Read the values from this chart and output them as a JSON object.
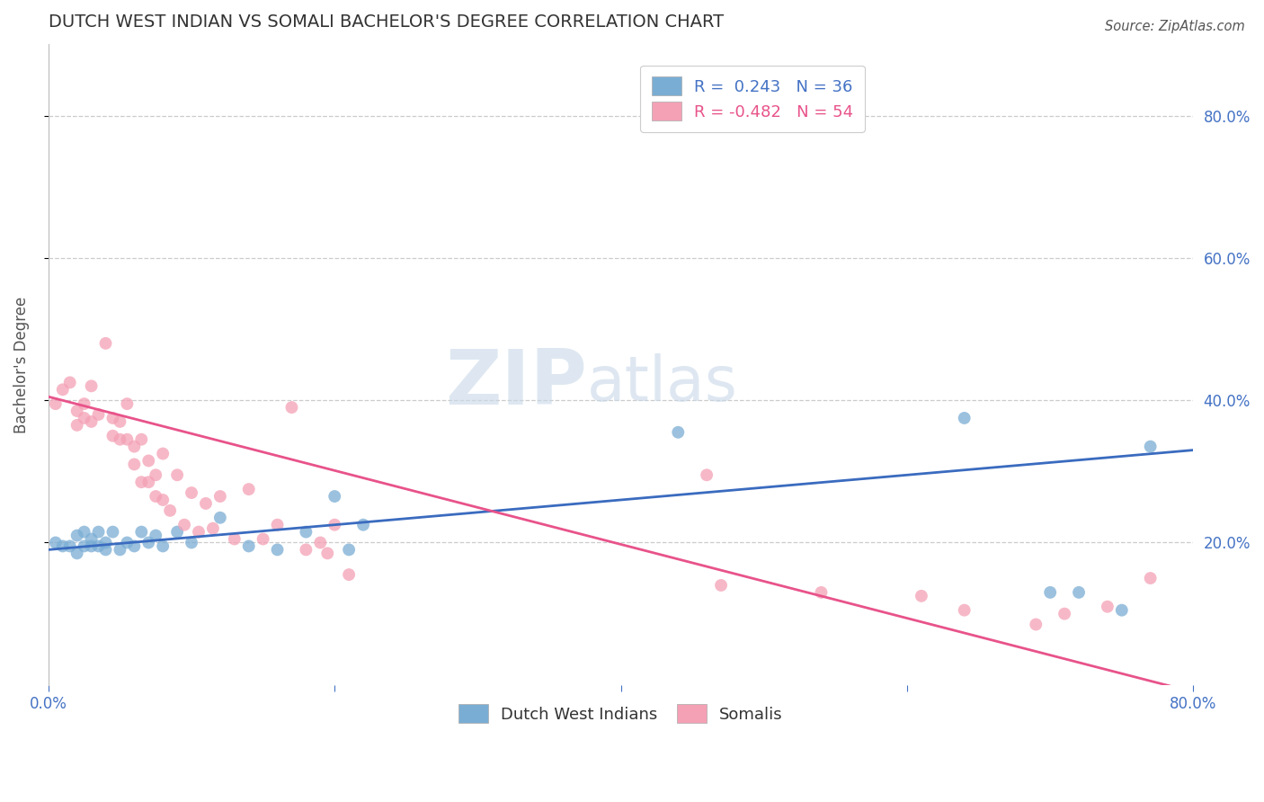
{
  "title": "DUTCH WEST INDIAN VS SOMALI BACHELOR'S DEGREE CORRELATION CHART",
  "source": "Source: ZipAtlas.com",
  "ylabel": "Bachelor's Degree",
  "xlim": [
    0.0,
    0.8
  ],
  "ylim": [
    0.0,
    0.9
  ],
  "xticks": [
    0.0,
    0.2,
    0.4,
    0.6,
    0.8
  ],
  "xtick_labels": [
    "0.0%",
    "",
    "",
    "",
    "80.0%"
  ],
  "yticks_right": [
    0.2,
    0.4,
    0.6,
    0.8
  ],
  "ytick_labels_right": [
    "20.0%",
    "40.0%",
    "60.0%",
    "80.0%"
  ],
  "grid_color": "#cccccc",
  "background_color": "#ffffff",
  "dutch_color": "#7aadd4",
  "somali_color": "#f4a0b5",
  "dutch_line_color": "#3a6bbf",
  "somali_line_color": "#e8538a",
  "R_dutch": 0.243,
  "N_dutch": 36,
  "R_somali": -0.482,
  "N_somali": 54,
  "dutch_x": [
    0.005,
    0.01,
    0.015,
    0.02,
    0.02,
    0.025,
    0.025,
    0.03,
    0.03,
    0.035,
    0.035,
    0.04,
    0.04,
    0.045,
    0.05,
    0.055,
    0.06,
    0.065,
    0.07,
    0.075,
    0.08,
    0.09,
    0.1,
    0.12,
    0.14,
    0.16,
    0.18,
    0.2,
    0.21,
    0.22,
    0.44,
    0.64,
    0.7,
    0.72,
    0.75,
    0.77
  ],
  "dutch_y": [
    0.2,
    0.195,
    0.195,
    0.185,
    0.21,
    0.195,
    0.215,
    0.195,
    0.205,
    0.195,
    0.215,
    0.19,
    0.2,
    0.215,
    0.19,
    0.2,
    0.195,
    0.215,
    0.2,
    0.21,
    0.195,
    0.215,
    0.2,
    0.235,
    0.195,
    0.19,
    0.215,
    0.265,
    0.19,
    0.225,
    0.355,
    0.375,
    0.13,
    0.13,
    0.105,
    0.335
  ],
  "somali_x": [
    0.005,
    0.01,
    0.015,
    0.02,
    0.02,
    0.025,
    0.025,
    0.03,
    0.03,
    0.035,
    0.04,
    0.045,
    0.045,
    0.05,
    0.05,
    0.055,
    0.055,
    0.06,
    0.06,
    0.065,
    0.065,
    0.07,
    0.07,
    0.075,
    0.075,
    0.08,
    0.08,
    0.085,
    0.09,
    0.095,
    0.1,
    0.105,
    0.11,
    0.115,
    0.12,
    0.13,
    0.14,
    0.15,
    0.16,
    0.17,
    0.18,
    0.19,
    0.195,
    0.2,
    0.21,
    0.46,
    0.47,
    0.54,
    0.61,
    0.64,
    0.69,
    0.71,
    0.74,
    0.77
  ],
  "somali_y": [
    0.395,
    0.415,
    0.425,
    0.365,
    0.385,
    0.375,
    0.395,
    0.37,
    0.42,
    0.38,
    0.48,
    0.35,
    0.375,
    0.345,
    0.37,
    0.345,
    0.395,
    0.31,
    0.335,
    0.285,
    0.345,
    0.285,
    0.315,
    0.265,
    0.295,
    0.26,
    0.325,
    0.245,
    0.295,
    0.225,
    0.27,
    0.215,
    0.255,
    0.22,
    0.265,
    0.205,
    0.275,
    0.205,
    0.225,
    0.39,
    0.19,
    0.2,
    0.185,
    0.225,
    0.155,
    0.295,
    0.14,
    0.13,
    0.125,
    0.105,
    0.085,
    0.1,
    0.11,
    0.15
  ],
  "watermark_zip": "ZIP",
  "watermark_atlas": "atlas",
  "title_color": "#333333",
  "label_color": "#4472c4",
  "legend_R_color_dutch": "#4472c4",
  "legend_R_color_somali": "#e8538a",
  "dutch_label": "Dutch West Indians",
  "somali_label": "Somalis"
}
